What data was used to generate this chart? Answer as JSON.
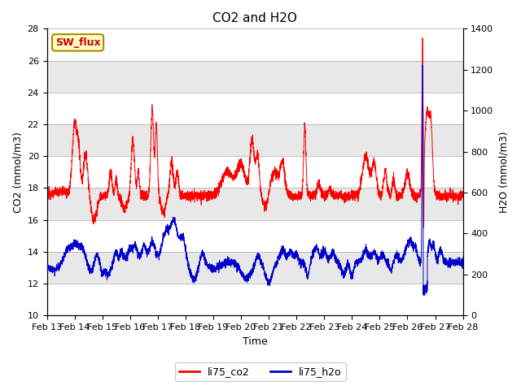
{
  "title": "CO2 and H2O",
  "xlabel": "Time",
  "ylabel_left": "CO2 (mmol/m3)",
  "ylabel_right": "H2O (mmol/m3)",
  "ylim_left": [
    10,
    28
  ],
  "ylim_right": [
    0,
    1400
  ],
  "yticks_left": [
    10,
    12,
    14,
    16,
    18,
    20,
    22,
    24,
    26,
    28
  ],
  "yticks_right": [
    0,
    200,
    400,
    600,
    800,
    1000,
    1200,
    1400
  ],
  "date_labels": [
    "Feb 13",
    "Feb 14",
    "Feb 15",
    "Feb 16",
    "Feb 17",
    "Feb 18",
    "Feb 19",
    "Feb 20",
    "Feb 21",
    "Feb 22",
    "Feb 23",
    "Feb 24",
    "Feb 25",
    "Feb 26",
    "Feb 27",
    "Feb 28"
  ],
  "sw_flux_label": "SW_flux",
  "line_co2_color": "#FF0000",
  "line_h2o_color": "#0000CC",
  "legend_labels": [
    "li75_co2",
    "li75_h2o"
  ],
  "background_color": "#FFFFFF",
  "axes_bg_color": "#E8E8E8",
  "band_colors": [
    "#F5F5F5",
    "#E8E8E8"
  ],
  "shaded_lighter": [
    22,
    26
  ],
  "title_fontsize": 11,
  "tick_fontsize": 8,
  "label_fontsize": 9
}
